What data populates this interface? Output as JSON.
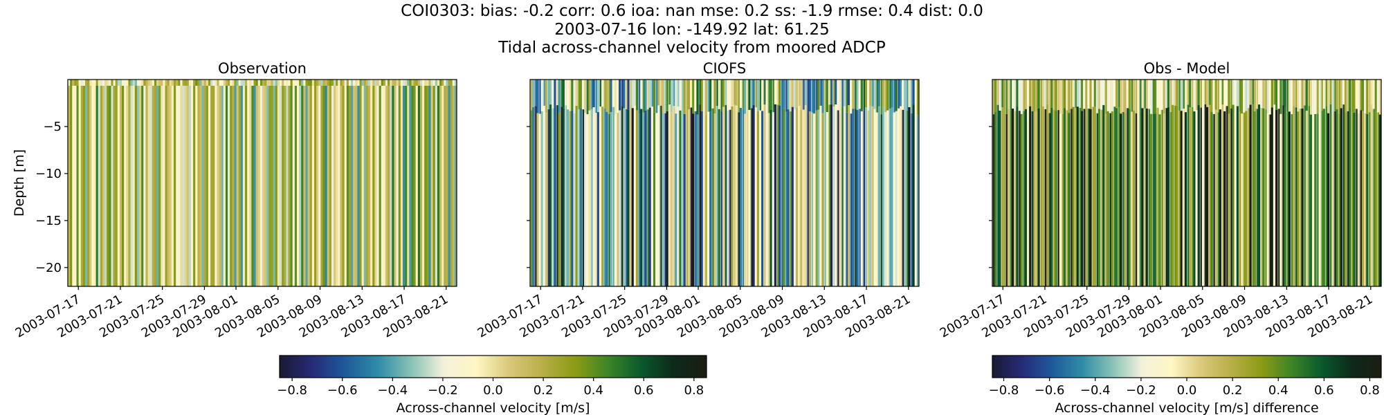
{
  "titles": {
    "line1": "COI0303: bias: -0.2  corr: 0.6  ioa: nan  mse: 0.2  ss: -1.9  rmse: 0.4  dist: 0.0",
    "line2": "2003-07-16 lon: -149.92 lat: 61.25",
    "line3": "Tidal across-channel velocity from moored ADCP"
  },
  "colors": {
    "colormap": [
      "#1a1a33",
      "#262b78",
      "#1e5a9a",
      "#2f8ca8",
      "#86c1b5",
      "#f3f1dc",
      "#fff6c3",
      "#d9c879",
      "#b7ae48",
      "#8c9b14",
      "#3d8526",
      "#0a5a2e",
      "#0d2a1a",
      "#1c1c12"
    ]
  },
  "chart_data": [
    {
      "type": "heatmap",
      "title": "Observation",
      "ylabel": "Depth [m]",
      "xlabel": "",
      "x_range": [
        "2003-07-16",
        "2003-08-22"
      ],
      "ylim": [
        -22,
        0
      ],
      "y_ticks": [
        -5,
        -10,
        -15,
        -20
      ],
      "y_tick_labels": [
        "−5",
        "−10",
        "−15",
        "−20"
      ],
      "x_ticks": [
        "2003-07-17",
        "2003-07-21",
        "2003-07-25",
        "2003-07-29",
        "2003-08-01",
        "2003-08-05",
        "2003-08-09",
        "2003-08-13",
        "2003-08-17",
        "2003-08-21"
      ],
      "value_range": [
        -0.85,
        0.85
      ],
      "band_count": 180,
      "band_amplitude": 0.45,
      "band_bias": 0.05
    },
    {
      "type": "heatmap",
      "title": "CIOFS",
      "ylabel": "",
      "xlabel": "",
      "x_range": [
        "2003-07-16",
        "2003-08-22"
      ],
      "ylim": [
        -22,
        0
      ],
      "y_ticks": [
        -5,
        -10,
        -15,
        -20
      ],
      "x_ticks": [
        "2003-07-17",
        "2003-07-21",
        "2003-07-25",
        "2003-07-29",
        "2003-08-01",
        "2003-08-05",
        "2003-08-09",
        "2003-08-13",
        "2003-08-17",
        "2003-08-21"
      ],
      "value_range": [
        -0.85,
        0.85
      ],
      "band_count": 180,
      "band_amplitude": 0.8,
      "band_bias": -0.1
    },
    {
      "type": "heatmap",
      "title": "Obs - Model",
      "ylabel": "",
      "xlabel": "",
      "x_range": [
        "2003-07-16",
        "2003-08-22"
      ],
      "ylim": [
        -22,
        0
      ],
      "y_ticks": [
        -5,
        -10,
        -15,
        -20
      ],
      "x_ticks": [
        "2003-07-17",
        "2003-07-21",
        "2003-07-25",
        "2003-07-29",
        "2003-08-01",
        "2003-08-05",
        "2003-08-09",
        "2003-08-13",
        "2003-08-17",
        "2003-08-21"
      ],
      "value_range": [
        -0.85,
        0.85
      ],
      "band_count": 180,
      "band_amplitude": 0.5,
      "band_bias": 0.45
    }
  ],
  "colorbars": [
    {
      "label": "Across-channel velocity [m/s]",
      "ticks": [
        -0.8,
        -0.6,
        -0.4,
        -0.2,
        0.0,
        0.2,
        0.4,
        0.6,
        0.8
      ],
      "tick_labels": [
        "−0.8",
        "−0.6",
        "−0.4",
        "−0.2",
        "0.0",
        "0.2",
        "0.4",
        "0.6",
        "0.8"
      ],
      "range": [
        -0.85,
        0.85
      ]
    },
    {
      "label": "Across-channel velocity [m/s] difference",
      "ticks": [
        -0.8,
        -0.6,
        -0.4,
        -0.2,
        0.0,
        0.2,
        0.4,
        0.6,
        0.8
      ],
      "tick_labels": [
        "−0.8",
        "−0.6",
        "−0.4",
        "−0.2",
        "0.0",
        "0.2",
        "0.4",
        "0.6",
        "0.8"
      ],
      "range": [
        -0.85,
        0.85
      ]
    }
  ]
}
